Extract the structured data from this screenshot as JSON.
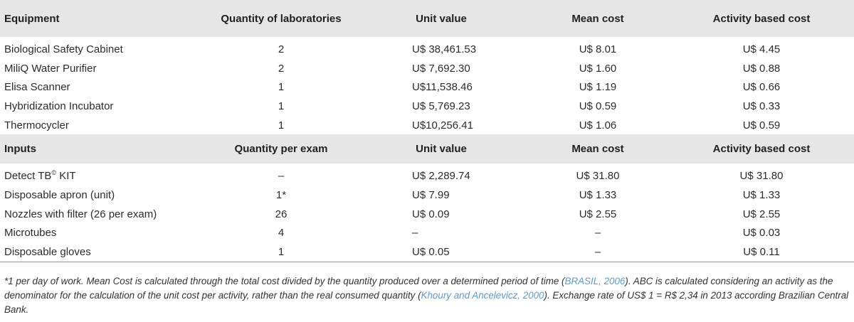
{
  "equipment_header": {
    "col1": "Equipment",
    "col2": "Quantity of laboratories",
    "col3": "Unit value",
    "col4": "Mean cost",
    "col5": "Activity based cost"
  },
  "equipment_rows": [
    {
      "name": "Biological Safety Cabinet",
      "qty": "2",
      "unit": "U$ 38,461.53",
      "mean": "U$ 8.01",
      "abc": "U$ 4.45"
    },
    {
      "name": "MiliQ Water Purifier",
      "qty": "2",
      "unit": "U$ 7,692.30",
      "mean": "U$ 1.60",
      "abc": "U$ 0.88"
    },
    {
      "name": "Elisa Scanner",
      "qty": "1",
      "unit": "U$11,538.46",
      "mean": "U$ 1.19",
      "abc": "U$ 0.66"
    },
    {
      "name": "Hybridization Incubator",
      "qty": "1",
      "unit": "U$ 5,769.23",
      "mean": "U$ 0.59",
      "abc": "U$ 0.33"
    },
    {
      "name": "Thermocycler",
      "qty": "1",
      "unit": "U$10,256.41",
      "mean": "U$ 1.06",
      "abc": "U$ 0.59"
    }
  ],
  "inputs_header": {
    "col1": "Inputs",
    "col2": "Quantity per exam",
    "col3": "Unit value",
    "col4": "Mean cost",
    "col5": "Activity based cost"
  },
  "inputs_rows": [
    {
      "name": "Detect TB",
      "name_sup": "©",
      "name_suffix": " KIT",
      "qty": "–",
      "unit": "U$ 2,289.74",
      "mean": "U$ 31.80",
      "abc": "U$ 31.80"
    },
    {
      "name": "Disposable apron (unit)",
      "qty": "1*",
      "unit": "U$ 7.99",
      "mean": "U$ 1.33",
      "abc": "U$ 1.33"
    },
    {
      "name": "Nozzles with filter (26 per exam)",
      "qty": "26",
      "unit": "U$ 0.09",
      "mean": "U$ 2.55",
      "abc": "U$ 2.55"
    },
    {
      "name": "Microtubes",
      "qty": "4",
      "unit": "–",
      "mean": "–",
      "abc": "U$ 0.03"
    },
    {
      "name": "Disposable gloves",
      "qty": "1",
      "unit": "U$ 0.05",
      "mean": "–",
      "abc": "U$ 0.11"
    }
  ],
  "footnote": {
    "part1": "*1 per day of work. Mean Cost is calculated through the total cost divided by the quantity produced over a determined period of time (",
    "ref1": "BRASIL, 2006",
    "part2": "). ABC is calculated considering an activity as the denominator for the calculation of the unit cost per activity, rather than the real consumed quantity (",
    "ref2": "Khoury and Ancelevicz, 2000",
    "part3": "). Exchange rate of US$ 1 = R$ 2,34 in 2013 according Brazilian Central Bank."
  },
  "colors": {
    "header_bg": "#e6e6e6",
    "link": "#5b9bd5"
  }
}
